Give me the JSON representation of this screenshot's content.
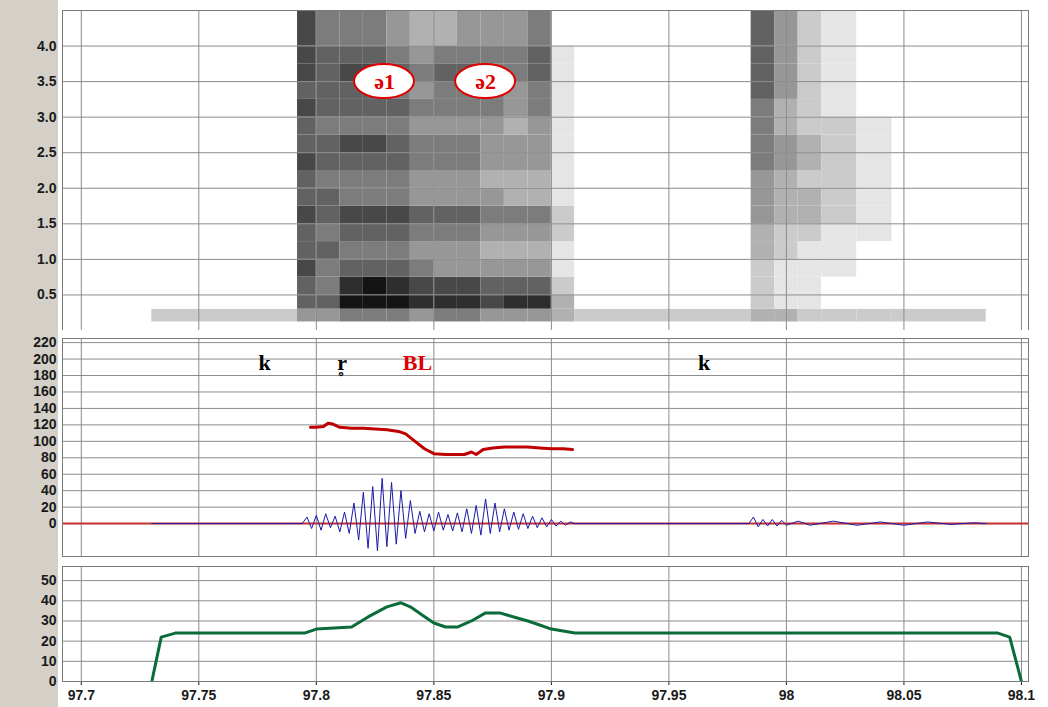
{
  "chart_data": [
    {
      "type": "heatmap",
      "xlim": [
        97.692,
        98.103
      ],
      "xticks": [
        97.7,
        97.75,
        97.8,
        97.85,
        97.9,
        97.95,
        98,
        98.05,
        98.1
      ],
      "ylim": [
        0,
        4.5
      ],
      "yticks": [
        0.5,
        {
          "value": 1,
          "label": "1.0"
        },
        1.5,
        {
          "value": 2,
          "label": "2.0"
        },
        2.5,
        {
          "value": 3,
          "label": "3.0"
        },
        3.5,
        {
          "value": 4,
          "label": "4.0"
        }
      ],
      "grid": true,
      "tick_labels": "y",
      "time_bins": [
        97.73,
        97.792,
        97.8,
        97.81,
        97.82,
        97.83,
        97.84,
        97.85,
        97.86,
        97.87,
        97.88,
        97.89,
        97.9,
        97.91,
        97.985,
        97.995,
        98.005,
        98.015,
        98.03,
        98.045,
        98.085
      ],
      "freq_bins": [
        0.12,
        0.3,
        0.5,
        0.75,
        1,
        1.25,
        1.5,
        1.75,
        2,
        2.25,
        2.5,
        2.75,
        3,
        3.25,
        3.5,
        3.75,
        4,
        4.5
      ],
      "values": [
        [
          2,
          0,
          0,
          0,
          0,
          0,
          0,
          0,
          0,
          0,
          0,
          0,
          0,
          0,
          0,
          0,
          0
        ],
        [
          4,
          6,
          6,
          7,
          6,
          6,
          7,
          6,
          6,
          7,
          6,
          6,
          7,
          6,
          7,
          7,
          7
        ],
        [
          4,
          6,
          5,
          5,
          6,
          5,
          6,
          6,
          5,
          6,
          6,
          5,
          6,
          6,
          6,
          6,
          5
        ],
        [
          5,
          9,
          8,
          6,
          5,
          6,
          7,
          5,
          5,
          6,
          7,
          5,
          6,
          6,
          7,
          6,
          5
        ],
        [
          5,
          9,
          9,
          6,
          5,
          6,
          7,
          5,
          5,
          6,
          7,
          5,
          6,
          6,
          7,
          6,
          5
        ],
        [
          5,
          9,
          8,
          6,
          5,
          6,
          7,
          5,
          5,
          6,
          6,
          5,
          6,
          5,
          6,
          5,
          4
        ],
        [
          4,
          8,
          7,
          5,
          4,
          5,
          6,
          4,
          4,
          5,
          5,
          4,
          5,
          4,
          5,
          4,
          3
        ],
        [
          5,
          8,
          7,
          4,
          4,
          5,
          6,
          4,
          4,
          5,
          5,
          4,
          5,
          5,
          6,
          5,
          3
        ],
        [
          5,
          8,
          7,
          4,
          4,
          5,
          6,
          4,
          4,
          5,
          5,
          4,
          5,
          5,
          6,
          5,
          4
        ],
        [
          4,
          7,
          6,
          4,
          3,
          4,
          5,
          4,
          3,
          4,
          4,
          4,
          5,
          5,
          5,
          5,
          4
        ],
        [
          4,
          8,
          6,
          4,
          3,
          4,
          5,
          3,
          3,
          4,
          4,
          3,
          4,
          4,
          5,
          5,
          4
        ],
        [
          4,
          8,
          6,
          4,
          3,
          4,
          5,
          3,
          3,
          4,
          4,
          4,
          5,
          5,
          6,
          6,
          5
        ],
        [
          3,
          3,
          2,
          1,
          1,
          2,
          2,
          1,
          1,
          1,
          1,
          1,
          1,
          1,
          1,
          1,
          0
        ],
        [
          2,
          0,
          0,
          0,
          0,
          0,
          0,
          0,
          0,
          0,
          0,
          0,
          0,
          0,
          0,
          0,
          0
        ],
        [
          3,
          2,
          2,
          2,
          3,
          3,
          4,
          4,
          4,
          5,
          5,
          5,
          5,
          6,
          6,
          6,
          6
        ],
        [
          3,
          1,
          1,
          1,
          2,
          2,
          3,
          3,
          3,
          4,
          4,
          3,
          3,
          4,
          4,
          4,
          4
        ],
        [
          2,
          1,
          1,
          1,
          1,
          2,
          3,
          3,
          2,
          3,
          3,
          2,
          2,
          2,
          2,
          2,
          2
        ],
        [
          2,
          0,
          0,
          1,
          1,
          1,
          2,
          2,
          2,
          2,
          2,
          2,
          1,
          1,
          1,
          1,
          1
        ],
        [
          2,
          0,
          0,
          0,
          0,
          1,
          1,
          1,
          1,
          1,
          1,
          1,
          0,
          0,
          0,
          0,
          0
        ],
        [
          2,
          0,
          0,
          0,
          0,
          0,
          0,
          0,
          0,
          0,
          0,
          0,
          0,
          0,
          0,
          0,
          0
        ]
      ],
      "annotations": [
        {
          "text": "ə1",
          "x": 97.829,
          "y": 3.5,
          "color": "#e00000",
          "marker": "ellipse"
        },
        {
          "text": "ə2",
          "x": 97.872,
          "y": 3.5,
          "color": "#e00000",
          "marker": "ellipse"
        }
      ]
    },
    {
      "type": "line",
      "xlim": [
        97.692,
        98.103
      ],
      "xticks": [
        97.7,
        97.75,
        97.8,
        97.85,
        97.9,
        97.95,
        98,
        98.05,
        98.1
      ],
      "ylim": [
        -40,
        225
      ],
      "yticks": [
        0,
        20,
        40,
        60,
        80,
        100,
        120,
        140,
        160,
        180,
        200,
        220
      ],
      "grid": true,
      "tick_labels": "y",
      "series": [
        {
          "color": "#1a1aa8",
          "x": [
            97.73,
            97.794,
            97.796,
            97.798,
            97.8,
            97.802,
            97.804,
            97.806,
            97.808,
            97.81,
            97.812,
            97.814,
            97.816,
            97.818,
            97.82,
            97.822,
            97.824,
            97.826,
            97.828,
            97.83,
            97.832,
            97.834,
            97.836,
            97.838,
            97.84,
            97.842,
            97.844,
            97.846,
            97.848,
            97.85,
            97.852,
            97.854,
            97.856,
            97.858,
            97.86,
            97.862,
            97.864,
            97.866,
            97.868,
            97.87,
            97.872,
            97.874,
            97.876,
            97.878,
            97.88,
            97.882,
            97.884,
            97.886,
            97.888,
            97.89,
            97.892,
            97.894,
            97.896,
            97.898,
            97.9,
            97.902,
            97.904,
            97.906,
            97.908,
            97.91,
            97.984,
            97.986,
            97.988,
            97.99,
            97.992,
            97.994,
            97.996,
            97.998,
            98.0,
            98.005,
            98.01,
            98.02,
            98.03,
            98.04,
            98.05,
            98.06,
            98.07,
            98.08,
            98.085
          ],
          "values": [
            0,
            0,
            8,
            -6,
            10,
            -8,
            12,
            -5,
            9,
            -10,
            14,
            -12,
            25,
            -20,
            38,
            -30,
            45,
            -33,
            55,
            -28,
            50,
            -25,
            40,
            -18,
            28,
            -12,
            15,
            -10,
            12,
            -9,
            14,
            -8,
            11,
            -9,
            13,
            -10,
            18,
            -12,
            22,
            -14,
            30,
            -12,
            25,
            -10,
            18,
            -8,
            14,
            -7,
            12,
            -6,
            9,
            -5,
            7,
            -4,
            5,
            -3,
            3,
            -2,
            2,
            0,
            0,
            8,
            -4,
            5,
            -3,
            5,
            -3,
            4,
            -2,
            3,
            -2,
            3,
            -2,
            2,
            -2,
            2,
            -1,
            1,
            0
          ]
        },
        {
          "color": "#c00000",
          "x": [
            97.7975,
            97.8,
            97.803,
            97.805,
            97.807,
            97.81,
            97.815,
            97.82,
            97.825,
            97.83,
            97.835,
            97.838,
            97.842,
            97.846,
            97.85,
            97.855,
            97.86,
            97.863,
            97.866,
            97.868,
            97.871,
            97.875,
            97.88,
            97.885,
            97.89,
            97.895,
            97.9,
            97.905,
            97.909
          ],
          "values": [
            117,
            117,
            118,
            122,
            121,
            117,
            116,
            116,
            115,
            114,
            112,
            109,
            100,
            91,
            85,
            84,
            84,
            84,
            87,
            84,
            90,
            92,
            93,
            93,
            93,
            92,
            91,
            91,
            90
          ]
        }
      ],
      "annotations": [
        {
          "text": "k",
          "x": 97.778,
          "y": 195,
          "color": "#000000"
        },
        {
          "text": "r̥",
          "x": 97.811,
          "y": 195,
          "color": "#000000"
        },
        {
          "text": "BL",
          "x": 97.843,
          "y": 195,
          "color": "#e00000"
        },
        {
          "text": "k",
          "x": 97.965,
          "y": 195,
          "color": "#000000"
        }
      ]
    },
    {
      "type": "line",
      "xlim": [
        97.692,
        98.103
      ],
      "xticks": [
        97.7,
        97.75,
        97.8,
        97.85,
        97.9,
        97.95,
        98,
        98.05,
        98.1
      ],
      "ylim": [
        0,
        57
      ],
      "yticks": [
        0,
        10,
        20,
        30,
        40,
        50
      ],
      "grid": true,
      "series": [
        {
          "color": "#0b6b3a",
          "x": [
            97.73,
            97.734,
            97.74,
            97.795,
            97.8,
            97.815,
            97.822,
            97.83,
            97.836,
            97.84,
            97.845,
            97.85,
            97.855,
            97.86,
            97.866,
            97.872,
            97.878,
            97.884,
            97.89,
            97.895,
            97.9,
            97.905,
            97.91,
            97.915,
            98.09,
            98.095,
            98.1
          ],
          "values": [
            0,
            22,
            24,
            24,
            26,
            27,
            32,
            37,
            39,
            37,
            33,
            29,
            27,
            27,
            30,
            34,
            34,
            32,
            30,
            28,
            26,
            25,
            24,
            24,
            24,
            22,
            0
          ]
        }
      ]
    }
  ]
}
